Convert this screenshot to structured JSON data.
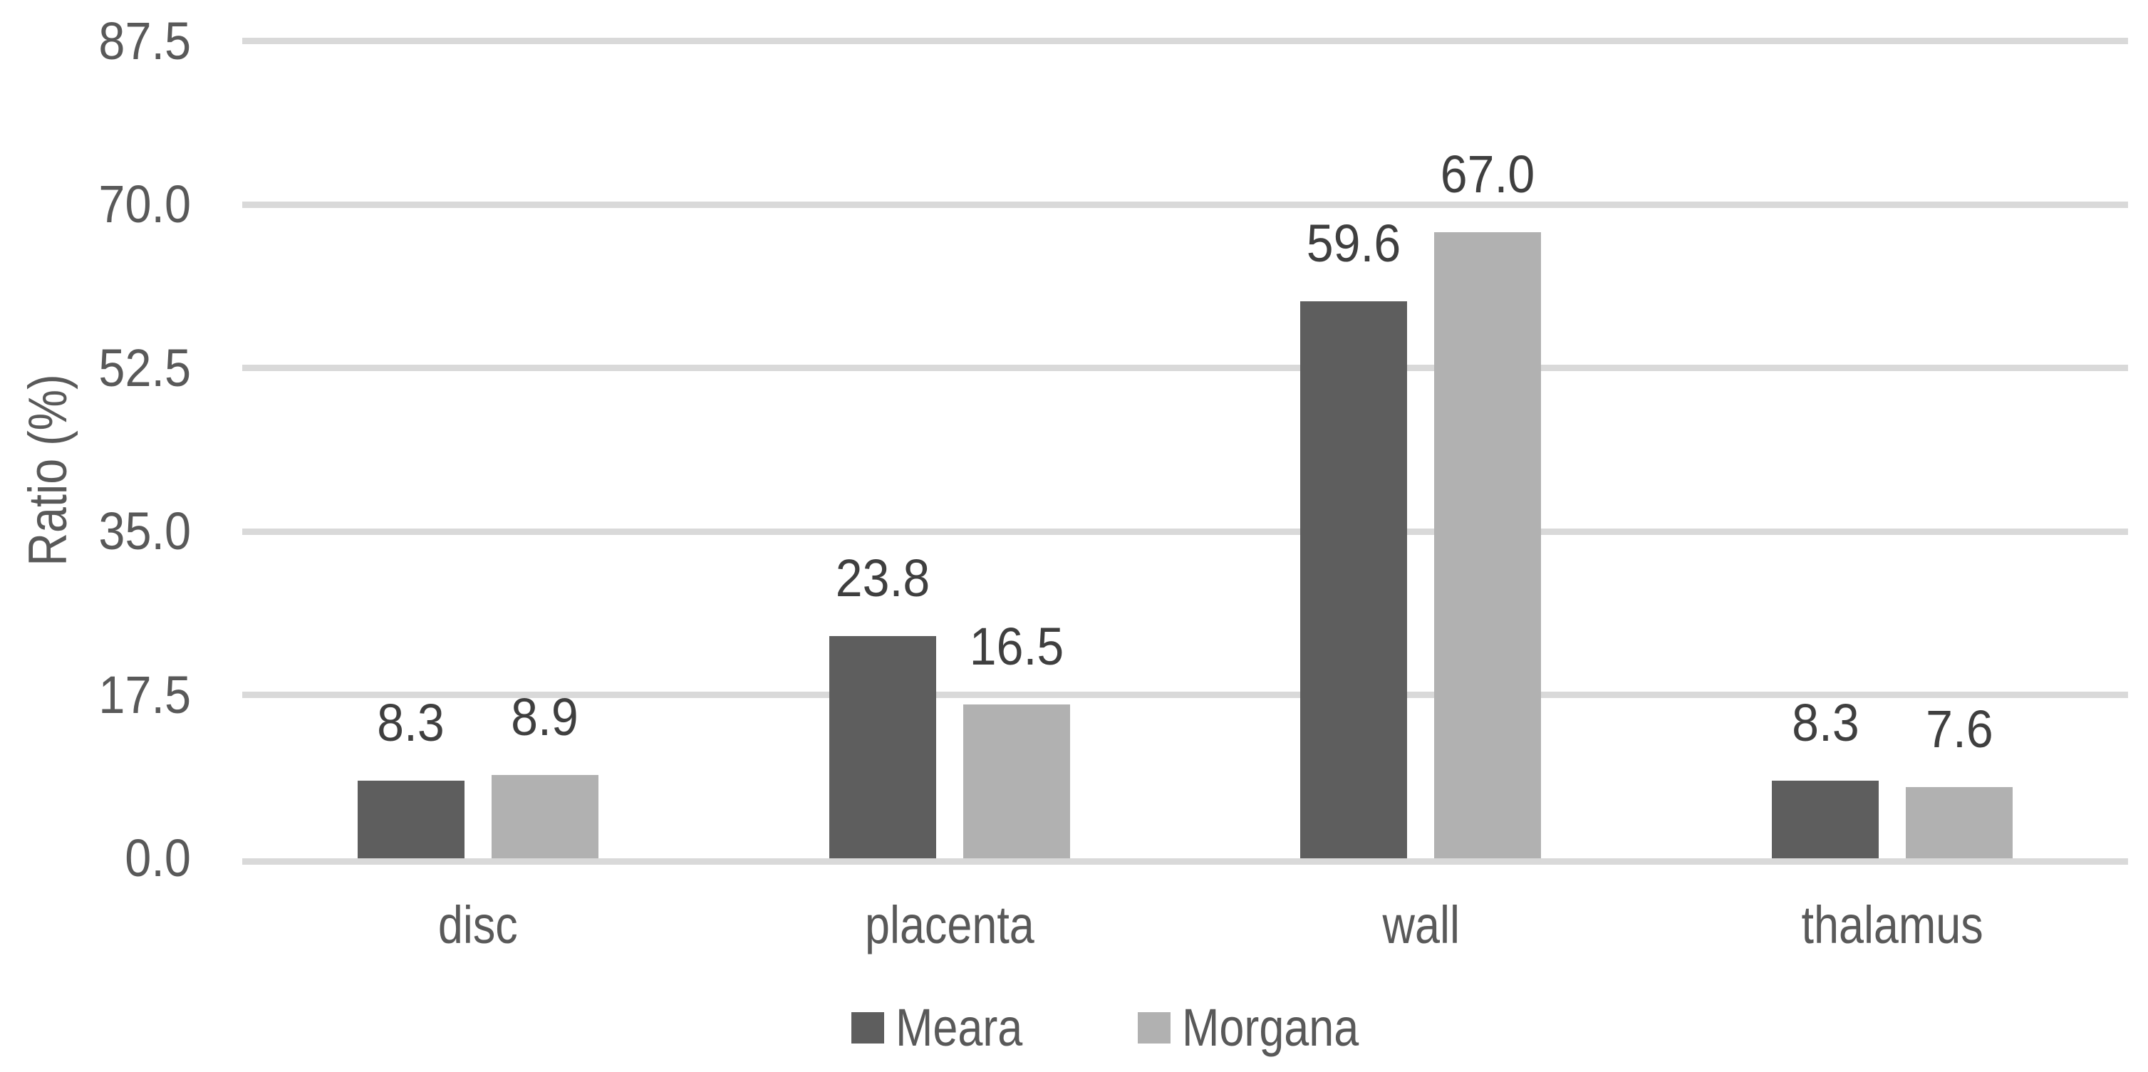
{
  "chart_data": {
    "type": "bar",
    "title": "",
    "categories": [
      "disc",
      "placenta",
      "wall",
      "thalamus"
    ],
    "series": [
      {
        "name": "Meara",
        "color": "#5E5E5E",
        "values": [
          8.3,
          23.8,
          59.6,
          8.3
        ],
        "labels": [
          "8.3",
          "23.8",
          "59.6",
          "8.3"
        ]
      },
      {
        "name": "Morgana",
        "color": "#B1B1B1",
        "values": [
          8.9,
          16.5,
          67.0,
          7.6
        ],
        "labels": [
          "8.9",
          "16.5",
          "67.0",
          "7.6"
        ]
      }
    ],
    "ylabel": "Ratio (%)",
    "yticks": [
      "0.0",
      "17.5",
      "35.0",
      "52.5",
      "70.0",
      "87.5"
    ],
    "ytick_values": [
      0,
      17.5,
      35,
      52.5,
      70,
      87.5
    ],
    "ylim": [
      0,
      87.5
    ],
    "grid": true,
    "data_labels_shown": true,
    "legend_position": "bottom",
    "colors": {
      "background": "#FFFFFF",
      "gridline": "#D9D9D9",
      "tick_text": "#595959",
      "category_text": "#595959",
      "axis_title_text": "#595959",
      "data_label_text": "#3F3F3F"
    }
  }
}
